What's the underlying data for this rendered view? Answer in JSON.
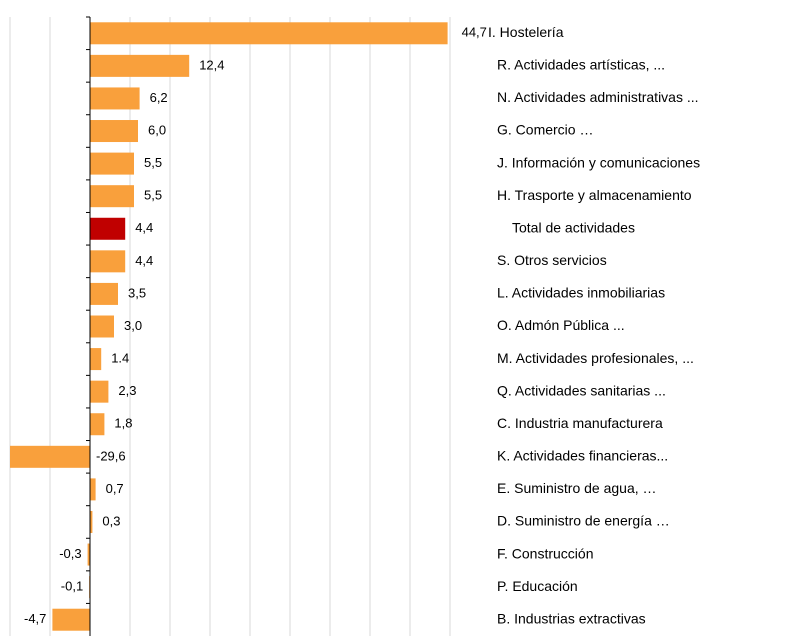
{
  "chart_data": {
    "type": "hbar",
    "categories": [
      "I. Hostelería",
      "R. Actividades artísticas, ...",
      "N. Actividades administrativas ...",
      "G. Comercio …",
      "J. Información y comunicaciones",
      "H. Trasporte y almacenamiento",
      "Total de actividades",
      "S. Otros servicios",
      "L. Actividades inmobiliarias",
      "O. Admón Pública ...",
      "M. Actividades profesionales, ...",
      "Q. Actividades sanitarias ...",
      "C. Industria manufacturera",
      "K. Actividades financieras...",
      "E. Suministro de agua, …",
      "D. Suministro de energía …",
      "F. Construcción",
      "P. Educación",
      "B. Industrias extractivas"
    ],
    "values": [
      44.7,
      12.4,
      6.2,
      6.0,
      5.5,
      5.5,
      4.4,
      4.4,
      3.5,
      3.0,
      1.4,
      2.3,
      1.8,
      -29.6,
      0.7,
      0.3,
      -0.3,
      -0.1,
      -4.7
    ],
    "value_labels": [
      "44,7",
      "12,4",
      "6,2",
      "6,0",
      "5,5",
      "5,5",
      "4,4",
      "4,4",
      "3,5",
      "3,0",
      "1.4",
      "2,3",
      "1,8",
      "-29,6",
      "0,7",
      "0,3",
      "-0,3",
      "-0,1",
      "-4,7"
    ],
    "colors": [
      "#f9a03c",
      "#f9a03c",
      "#f9a03c",
      "#f9a03c",
      "#f9a03c",
      "#f9a03c",
      "#c00000",
      "#f9a03c",
      "#f9a03c",
      "#f9a03c",
      "#f9a03c",
      "#f9a03c",
      "#f9a03c",
      "#f9a03c",
      "#f9a03c",
      "#f9a03c",
      "#f9a03c",
      "#f9a03c",
      "#f9a03c"
    ],
    "xlim": [
      -10,
      45
    ],
    "xticks": [
      -10,
      -5,
      0,
      5,
      10,
      15,
      20,
      25,
      30,
      35,
      40,
      45
    ],
    "grid": true
  }
}
